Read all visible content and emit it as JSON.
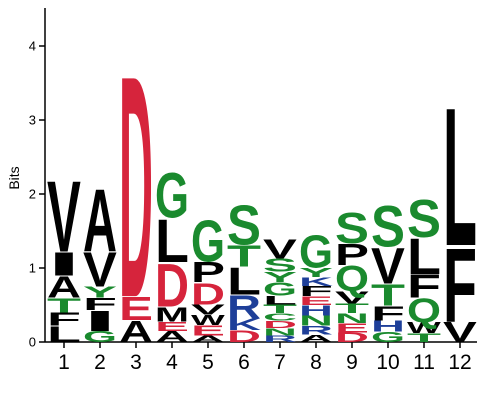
{
  "chart_data": {
    "type": "sequence-logo",
    "ylabel": "Bits",
    "ylim": [
      0,
      4.5
    ],
    "yticks": [
      "0",
      "1",
      "2",
      "3",
      "4"
    ],
    "positions": [
      "1",
      "2",
      "3",
      "4",
      "5",
      "6",
      "7",
      "8",
      "9",
      "10",
      "11",
      "12"
    ],
    "colors": {
      "hydrophobic": "#000000",
      "polar": "#1a8a2e",
      "acidic": "#d6243c",
      "basic": "#1e3f99"
    },
    "stacks": [
      [
        {
          "letter": "L",
          "height": 0.22,
          "class": "hydrophobic"
        },
        {
          "letter": "F",
          "height": 0.18,
          "class": "hydrophobic"
        },
        {
          "letter": "T",
          "height": 0.2,
          "class": "polar"
        },
        {
          "letter": "A",
          "height": 0.3,
          "class": "hydrophobic"
        },
        {
          "letter": "I",
          "height": 0.32,
          "class": "hydrophobic"
        },
        {
          "letter": "V",
          "height": 0.98,
          "class": "hydrophobic"
        }
      ],
      [
        {
          "letter": "G",
          "height": 0.15,
          "class": "polar"
        },
        {
          "letter": "I",
          "height": 0.28,
          "class": "hydrophobic"
        },
        {
          "letter": "F",
          "height": 0.17,
          "class": "hydrophobic"
        },
        {
          "letter": "Y",
          "height": 0.15,
          "class": "polar"
        },
        {
          "letter": "V",
          "height": 0.48,
          "class": "hydrophobic"
        },
        {
          "letter": "A",
          "height": 0.87,
          "class": "hydrophobic"
        }
      ],
      [
        {
          "letter": "A",
          "height": 0.3,
          "class": "hydrophobic"
        },
        {
          "letter": "E",
          "height": 0.32,
          "class": "acidic"
        },
        {
          "letter": "D",
          "height": 3.08,
          "class": "acidic"
        }
      ],
      [
        {
          "letter": "A",
          "height": 0.15,
          "class": "hydrophobic"
        },
        {
          "letter": "E",
          "height": 0.13,
          "class": "acidic"
        },
        {
          "letter": "M",
          "height": 0.2,
          "class": "hydrophobic"
        },
        {
          "letter": "D",
          "height": 0.6,
          "class": "acidic"
        },
        {
          "letter": "L",
          "height": 0.6,
          "class": "hydrophobic"
        },
        {
          "letter": "G",
          "height": 0.62,
          "class": "polar"
        }
      ],
      [
        {
          "letter": "A",
          "height": 0.09,
          "class": "hydrophobic"
        },
        {
          "letter": "E",
          "height": 0.14,
          "class": "acidic"
        },
        {
          "letter": "W",
          "height": 0.14,
          "class": "hydrophobic"
        },
        {
          "letter": "V",
          "height": 0.14,
          "class": "hydrophobic"
        },
        {
          "letter": "D",
          "height": 0.3,
          "class": "acidic"
        },
        {
          "letter": "P",
          "height": 0.28,
          "class": "hydrophobic"
        },
        {
          "letter": "G",
          "height": 0.58,
          "class": "polar"
        }
      ],
      [
        {
          "letter": "D",
          "height": 0.16,
          "class": "acidic"
        },
        {
          "letter": "K",
          "height": 0.16,
          "class": "basic"
        },
        {
          "letter": "R",
          "height": 0.32,
          "class": "basic"
        },
        {
          "letter": "L",
          "height": 0.38,
          "class": "hydrophobic"
        },
        {
          "letter": "T",
          "height": 0.3,
          "class": "polar"
        },
        {
          "letter": "S",
          "height": 0.55,
          "class": "polar"
        }
      ],
      [
        {
          "letter": "R",
          "height": 0.09,
          "class": "basic"
        },
        {
          "letter": "N",
          "height": 0.1,
          "class": "polar"
        },
        {
          "letter": "D",
          "height": 0.1,
          "class": "acidic"
        },
        {
          "letter": "C",
          "height": 0.1,
          "class": "polar"
        },
        {
          "letter": "T",
          "height": 0.12,
          "class": "polar"
        },
        {
          "letter": "L",
          "height": 0.12,
          "class": "hydrophobic"
        },
        {
          "letter": "G",
          "height": 0.18,
          "class": "polar"
        },
        {
          "letter": "Y",
          "height": 0.14,
          "class": "polar"
        },
        {
          "letter": "S",
          "height": 0.18,
          "class": "polar"
        },
        {
          "letter": "V",
          "height": 0.27,
          "class": "hydrophobic"
        }
      ],
      [
        {
          "letter": "A",
          "height": 0.1,
          "class": "hydrophobic"
        },
        {
          "letter": "R",
          "height": 0.12,
          "class": "basic"
        },
        {
          "letter": "N",
          "height": 0.14,
          "class": "polar"
        },
        {
          "letter": "H",
          "height": 0.14,
          "class": "basic"
        },
        {
          "letter": "E",
          "height": 0.12,
          "class": "acidic"
        },
        {
          "letter": "F",
          "height": 0.14,
          "class": "hydrophobic"
        },
        {
          "letter": "K",
          "height": 0.12,
          "class": "basic"
        },
        {
          "letter": "Y",
          "height": 0.13,
          "class": "polar"
        },
        {
          "letter": "G",
          "height": 0.45,
          "class": "polar"
        }
      ],
      [
        {
          "letter": "D",
          "height": 0.13,
          "class": "acidic"
        },
        {
          "letter": "E",
          "height": 0.13,
          "class": "acidic"
        },
        {
          "letter": "N",
          "height": 0.13,
          "class": "polar"
        },
        {
          "letter": "T",
          "height": 0.13,
          "class": "polar"
        },
        {
          "letter": "V",
          "height": 0.17,
          "class": "hydrophobic"
        },
        {
          "letter": "Q",
          "height": 0.35,
          "class": "polar"
        },
        {
          "letter": "P",
          "height": 0.3,
          "class": "hydrophobic"
        },
        {
          "letter": "S",
          "height": 0.42,
          "class": "polar"
        }
      ],
      [
        {
          "letter": "G",
          "height": 0.14,
          "class": "polar"
        },
        {
          "letter": "H",
          "height": 0.15,
          "class": "basic"
        },
        {
          "letter": "F",
          "height": 0.2,
          "class": "hydrophobic"
        },
        {
          "letter": "T",
          "height": 0.3,
          "class": "polar"
        },
        {
          "letter": "V",
          "height": 0.5,
          "class": "hydrophobic"
        },
        {
          "letter": "S",
          "height": 0.57,
          "class": "polar"
        }
      ],
      [
        {
          "letter": "T",
          "height": 0.12,
          "class": "polar"
        },
        {
          "letter": "W",
          "height": 0.15,
          "class": "hydrophobic"
        },
        {
          "letter": "Q",
          "height": 0.33,
          "class": "polar"
        },
        {
          "letter": "F",
          "height": 0.32,
          "class": "hydrophobic"
        },
        {
          "letter": "L",
          "height": 0.5,
          "class": "hydrophobic"
        },
        {
          "letter": "S",
          "height": 0.52,
          "class": "polar"
        }
      ],
      [
        {
          "letter": "V",
          "height": 0.28,
          "class": "hydrophobic"
        },
        {
          "letter": "F",
          "height": 1.03,
          "class": "hydrophobic"
        },
        {
          "letter": "L",
          "height": 1.92,
          "class": "hydrophobic"
        }
      ]
    ]
  }
}
